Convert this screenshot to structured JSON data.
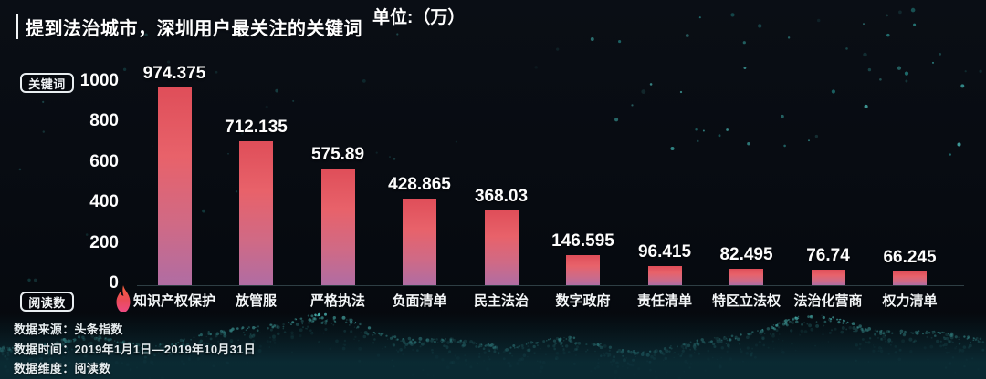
{
  "header": {
    "title": "提到法治城市，深圳用户最关注的关键词",
    "unit_label": "单位:（万）"
  },
  "axis_tags": {
    "top": "关键词",
    "origin": "阅读数"
  },
  "chart_data": {
    "type": "bar",
    "title": "提到法治城市，深圳用户最关注的关键词",
    "unit": "万",
    "categories": [
      "知识产权保护",
      "放管服",
      "严格执法",
      "负面清单",
      "民主法治",
      "数字政府",
      "责任清单",
      "特区立法权",
      "法治化营商",
      "权力清单"
    ],
    "values": [
      974.375,
      712.135,
      575.89,
      428.865,
      368.03,
      146.595,
      96.415,
      82.495,
      76.74,
      66.245
    ],
    "y_ticks": [
      0,
      200,
      400,
      600,
      800,
      1000
    ],
    "ylim": [
      0,
      1000
    ],
    "ylabel": "阅读数",
    "xlabel": "关键词",
    "grid": false,
    "legend_position": "none",
    "bar_color_top": "#df4e59",
    "bar_color_bottom": "#b06da3",
    "hot_flame_on_category": "知识产权保护"
  },
  "footer": {
    "lines": [
      "数据来源：头条指数",
      "数据时间：2019年1月1日—2019年10月31日",
      "数据维度：阅读数"
    ]
  },
  "colors": {
    "background": "#070b11",
    "text": "#ffffff",
    "particle_teal": "#2d9a94",
    "accent_bar": "#f2f5f7"
  }
}
